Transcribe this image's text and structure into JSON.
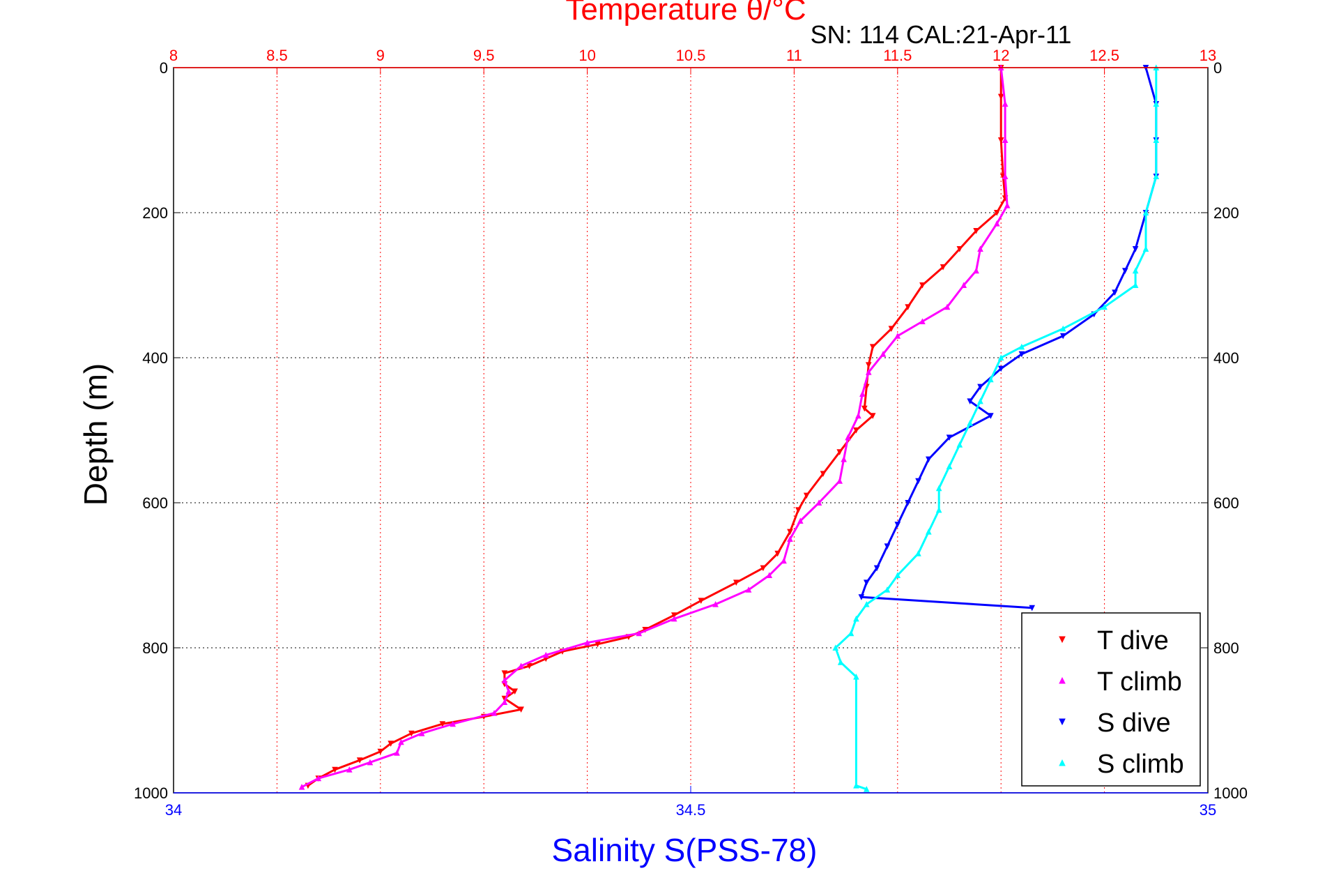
{
  "chart_data": {
    "type": "scatter",
    "title": "SN: 114  CAL:21-Apr-11",
    "top_axis": {
      "label": "Temperature θ/°C",
      "range": [
        8,
        13
      ],
      "ticks": [
        "8",
        "8.5",
        "9",
        "9.5",
        "10",
        "10.5",
        "11",
        "11.5",
        "12",
        "12.5",
        "13"
      ],
      "tick_values": [
        8,
        8.5,
        9,
        9.5,
        10,
        10.5,
        11,
        11.5,
        12,
        12.5,
        13
      ],
      "color": "#ff0000",
      "grid": true
    },
    "bottom_axis": {
      "label": "Salinity S(PSS-78)",
      "range": [
        34,
        35
      ],
      "ticks": [
        "34",
        "34.5",
        "35"
      ],
      "tick_values": [
        34,
        34.5,
        35
      ],
      "color": "#0000ff"
    },
    "y_axis": {
      "label": "Depth (m)",
      "range": [
        0,
        1000
      ],
      "reversed": true,
      "ticks_left": [
        "0",
        "200",
        "400",
        "600",
        "800",
        "1000"
      ],
      "ticks_right": [
        "0",
        "200",
        "400",
        "600",
        "800",
        "1000"
      ],
      "tick_values": [
        0,
        200,
        400,
        600,
        800,
        1000
      ],
      "grid": true
    },
    "legend": {
      "placement": "bottom-right",
      "entries": [
        "T dive",
        "T climb",
        "S dive",
        "S climb"
      ]
    },
    "series": [
      {
        "name": "T dive",
        "axis": "temperature",
        "color": "#ff0000",
        "marker": "triangle-down",
        "points": [
          [
            12.0,
            0
          ],
          [
            12.0,
            40
          ],
          [
            12.0,
            100
          ],
          [
            12.01,
            150
          ],
          [
            12.02,
            180
          ],
          [
            11.98,
            200
          ],
          [
            11.88,
            225
          ],
          [
            11.8,
            250
          ],
          [
            11.72,
            275
          ],
          [
            11.62,
            300
          ],
          [
            11.55,
            330
          ],
          [
            11.47,
            360
          ],
          [
            11.38,
            385
          ],
          [
            11.36,
            410
          ],
          [
            11.35,
            440
          ],
          [
            11.34,
            470
          ],
          [
            11.38,
            480
          ],
          [
            11.3,
            500
          ],
          [
            11.22,
            530
          ],
          [
            11.14,
            560
          ],
          [
            11.06,
            590
          ],
          [
            11.02,
            610
          ],
          [
            10.98,
            640
          ],
          [
            10.92,
            670
          ],
          [
            10.85,
            690
          ],
          [
            10.72,
            710
          ],
          [
            10.55,
            735
          ],
          [
            10.42,
            755
          ],
          [
            10.28,
            775
          ],
          [
            10.2,
            785
          ],
          [
            10.05,
            795
          ],
          [
            9.88,
            805
          ],
          [
            9.8,
            815
          ],
          [
            9.72,
            825
          ],
          [
            9.6,
            835
          ],
          [
            9.6,
            850
          ],
          [
            9.65,
            860
          ],
          [
            9.6,
            870
          ],
          [
            9.68,
            885
          ],
          [
            9.5,
            895
          ],
          [
            9.3,
            905
          ],
          [
            9.15,
            918
          ],
          [
            9.05,
            932
          ],
          [
            9.0,
            943
          ],
          [
            8.9,
            955
          ],
          [
            8.78,
            968
          ],
          [
            8.7,
            980
          ],
          [
            8.65,
            990
          ]
        ]
      },
      {
        "name": "T climb",
        "axis": "temperature",
        "color": "#ff00ff",
        "marker": "triangle-up",
        "points": [
          [
            12.0,
            0
          ],
          [
            12.02,
            50
          ],
          [
            12.02,
            100
          ],
          [
            12.02,
            150
          ],
          [
            12.03,
            190
          ],
          [
            11.98,
            215
          ],
          [
            11.9,
            250
          ],
          [
            11.88,
            280
          ],
          [
            11.82,
            300
          ],
          [
            11.74,
            330
          ],
          [
            11.62,
            350
          ],
          [
            11.5,
            370
          ],
          [
            11.43,
            395
          ],
          [
            11.36,
            420
          ],
          [
            11.33,
            450
          ],
          [
            11.31,
            480
          ],
          [
            11.26,
            510
          ],
          [
            11.24,
            540
          ],
          [
            11.22,
            570
          ],
          [
            11.12,
            600
          ],
          [
            11.03,
            625
          ],
          [
            10.98,
            650
          ],
          [
            10.95,
            680
          ],
          [
            10.88,
            700
          ],
          [
            10.78,
            720
          ],
          [
            10.62,
            740
          ],
          [
            10.42,
            760
          ],
          [
            10.25,
            780
          ],
          [
            10.0,
            793
          ],
          [
            9.8,
            810
          ],
          [
            9.68,
            825
          ],
          [
            9.6,
            845
          ],
          [
            9.62,
            860
          ],
          [
            9.6,
            875
          ],
          [
            9.55,
            890
          ],
          [
            9.35,
            905
          ],
          [
            9.2,
            918
          ],
          [
            9.1,
            930
          ],
          [
            9.08,
            945
          ],
          [
            8.95,
            958
          ],
          [
            8.85,
            968
          ],
          [
            8.7,
            980
          ],
          [
            8.62,
            992
          ]
        ]
      },
      {
        "name": "S dive",
        "axis": "salinity",
        "color": "#0000ff",
        "marker": "triangle-down",
        "points": [
          [
            34.94,
            0
          ],
          [
            34.95,
            50
          ],
          [
            34.95,
            100
          ],
          [
            34.95,
            150
          ],
          [
            34.94,
            200
          ],
          [
            34.93,
            250
          ],
          [
            34.92,
            280
          ],
          [
            34.91,
            310
          ],
          [
            34.89,
            340
          ],
          [
            34.86,
            370
          ],
          [
            34.82,
            395
          ],
          [
            34.8,
            415
          ],
          [
            34.78,
            440
          ],
          [
            34.77,
            460
          ],
          [
            34.79,
            480
          ],
          [
            34.75,
            510
          ],
          [
            34.73,
            540
          ],
          [
            34.72,
            570
          ],
          [
            34.71,
            600
          ],
          [
            34.7,
            630
          ],
          [
            34.69,
            660
          ],
          [
            34.68,
            690
          ],
          [
            34.67,
            710
          ],
          [
            34.665,
            730
          ],
          [
            34.83,
            745
          ]
        ]
      },
      {
        "name": "S climb",
        "axis": "salinity",
        "color": "#00ffff",
        "marker": "triangle-up",
        "points": [
          [
            34.95,
            0
          ],
          [
            34.95,
            50
          ],
          [
            34.95,
            100
          ],
          [
            34.95,
            150
          ],
          [
            34.94,
            200
          ],
          [
            34.94,
            250
          ],
          [
            34.93,
            280
          ],
          [
            34.93,
            300
          ],
          [
            34.9,
            330
          ],
          [
            34.86,
            360
          ],
          [
            34.82,
            385
          ],
          [
            34.8,
            400
          ],
          [
            34.79,
            430
          ],
          [
            34.78,
            460
          ],
          [
            34.77,
            490
          ],
          [
            34.76,
            520
          ],
          [
            34.75,
            550
          ],
          [
            34.74,
            580
          ],
          [
            34.74,
            610
          ],
          [
            34.73,
            640
          ],
          [
            34.72,
            670
          ],
          [
            34.7,
            700
          ],
          [
            34.69,
            720
          ],
          [
            34.67,
            740
          ],
          [
            34.66,
            760
          ],
          [
            34.655,
            780
          ],
          [
            34.64,
            800
          ],
          [
            34.645,
            820
          ],
          [
            34.66,
            840
          ],
          [
            34.66,
            990
          ],
          [
            34.67,
            995
          ]
        ]
      }
    ]
  }
}
